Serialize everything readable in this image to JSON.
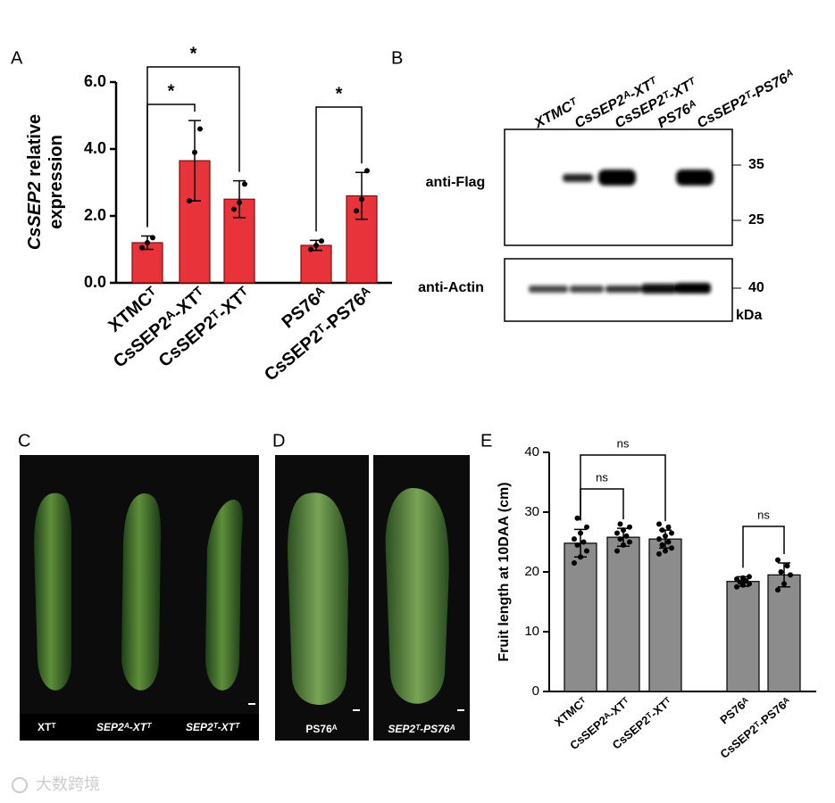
{
  "chart_data": [
    {
      "type": "bar",
      "panel": "A",
      "ylabel": [
        "CsSEP2",
        " relative",
        "expression"
      ],
      "categories": [
        "XTMCᵀ",
        "CsSEP2ᴬ-XTᵀ",
        "CsSEP2ᵀ-XTᵀ",
        "PS76ᴬ",
        "CsSEP2ᵀ-PS76ᴬ"
      ],
      "values": [
        1.2,
        3.65,
        2.5,
        1.12,
        2.6
      ],
      "errors": [
        0.2,
        1.2,
        0.55,
        0.15,
        0.7
      ],
      "points": [
        [
          1.05,
          1.2,
          1.35
        ],
        [
          2.45,
          3.9,
          4.6
        ],
        [
          2.2,
          2.4,
          2.95
        ],
        [
          1.0,
          1.12,
          1.25
        ],
        [
          2.15,
          2.5,
          3.35
        ]
      ],
      "color": "#e8333b",
      "ylim": [
        0,
        6
      ],
      "yticks": [
        {
          "value": 0,
          "label": "0.0"
        },
        {
          "value": 2,
          "label": "2.0"
        },
        {
          "value": 4,
          "label": "4.0"
        },
        {
          "value": 6,
          "label": "6.0"
        }
      ],
      "comparisons": [
        {
          "pair": [
            0,
            1
          ],
          "label": "*"
        },
        {
          "pair": [
            0,
            2
          ],
          "label": "*"
        },
        {
          "pair": [
            3,
            4
          ],
          "label": "*"
        }
      ]
    },
    {
      "type": "bar",
      "panel": "E",
      "ylabel": [
        "Fruit length at 10DAA (cm)"
      ],
      "categories": [
        "XTMCᵀ",
        "CsSEP2ᴬ-XTᵀ",
        "CsSEP2ᵀ-XTᵀ",
        "PS76ᴬ",
        "CsSEP2ᵀ-PS76ᴬ"
      ],
      "values": [
        24.8,
        25.8,
        25.5,
        18.4,
        19.5
      ],
      "errors": [
        2.3,
        1.5,
        1.5,
        0.8,
        2.0
      ],
      "points": [
        [
          21.5,
          22.5,
          23.5,
          24.5,
          25,
          25.5,
          26.5,
          27.5,
          29
        ],
        [
          23.5,
          24.5,
          25,
          25.5,
          26,
          26.5,
          27,
          27.5,
          28
        ],
        [
          23,
          23.5,
          24,
          24.5,
          25,
          25.5,
          26,
          26.5,
          27,
          27.5,
          28
        ],
        [
          17.5,
          17.8,
          18,
          18.3,
          18.5,
          18.8,
          19,
          19.2
        ],
        [
          17,
          18,
          19.5,
          20,
          21,
          22
        ]
      ],
      "color": "#8c8c8c",
      "ylim": [
        0,
        40
      ],
      "yticks": [
        0,
        10,
        20,
        30,
        40
      ],
      "comparisons": [
        {
          "pair": [
            0,
            1
          ],
          "label": "ns"
        },
        {
          "pair": [
            0,
            2
          ],
          "label": "ns"
        },
        {
          "pair": [
            3,
            4
          ],
          "label": "ns"
        }
      ]
    }
  ],
  "blot": {
    "panel": "B",
    "lanes": [
      "XTMCᵀ",
      "CsSEP2ᴬ-XTᵀ",
      "CsSEP2ᵀ-XTᵀ",
      "PS76ᴬ",
      "CsSEP2ᵀ-PS76ᴬ"
    ],
    "rows": [
      "anti-Flag",
      "anti-Actin"
    ],
    "markers": [
      "35",
      "25",
      "40"
    ],
    "unit": "kDa"
  },
  "photo_c": {
    "panel": "C",
    "labels": [
      "XTᵀ",
      "SEP2ᴬ-XTᵀ",
      "SEP2ᵀ-XTᵀ"
    ]
  },
  "photo_d": {
    "panel": "D",
    "labels": [
      "PS76ᴬ",
      "SEP2ᵀ-PS76ᴬ"
    ]
  },
  "watermark": "大数跨境"
}
